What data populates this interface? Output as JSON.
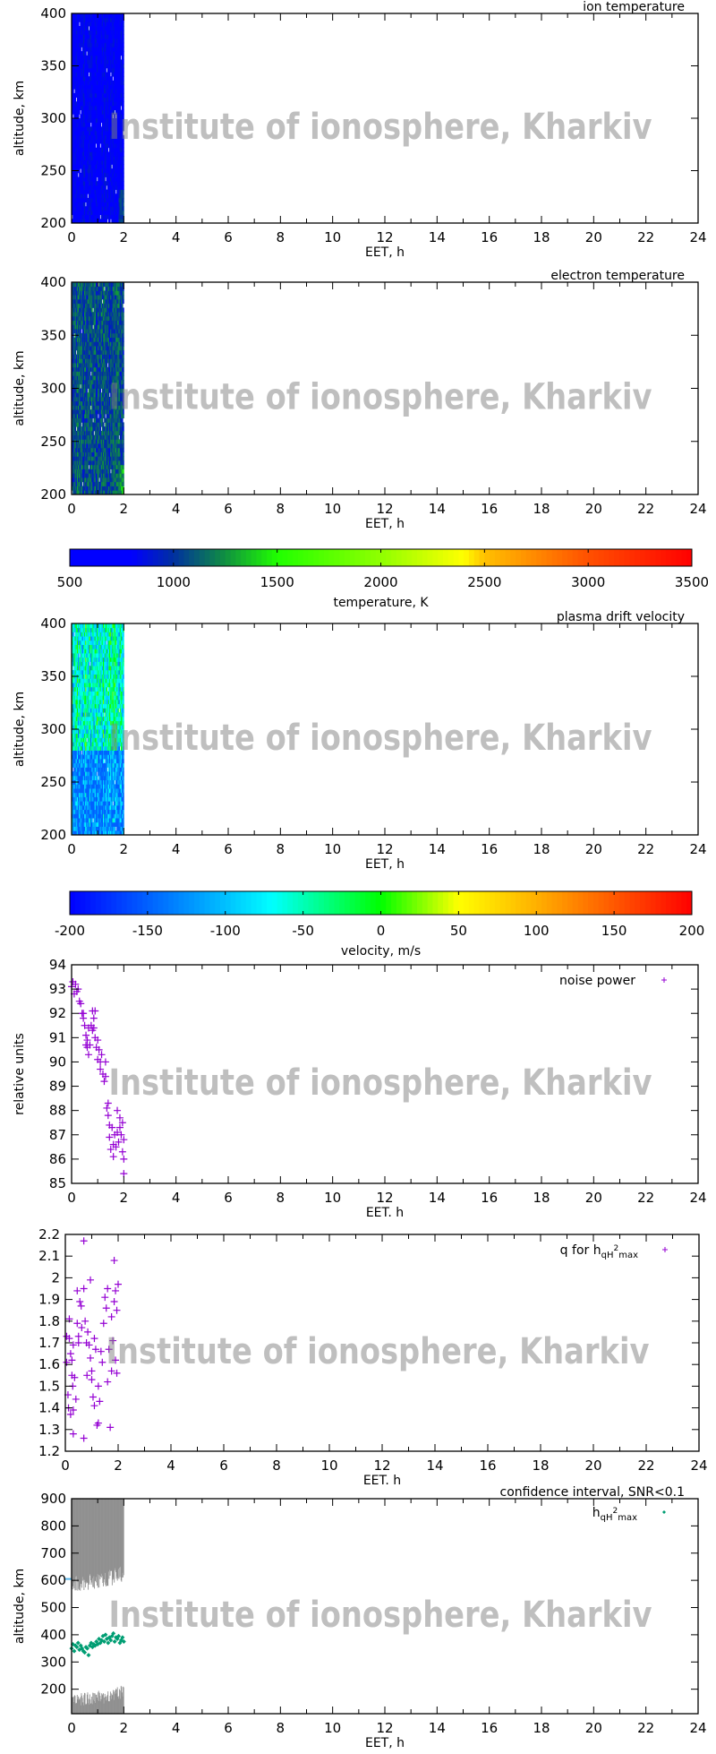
{
  "watermark": "Institute of ionosphere, Kharkiv",
  "colors": {
    "scatter": "#9400d3",
    "h_points": "#009e73",
    "confidence": "#909090",
    "arrow": "#56b4e9",
    "watermark": "#c0c0c0"
  },
  "chart_data": [
    {
      "type": "heatmap",
      "title": "ion temperature",
      "xlabel": "EET, h",
      "ylabel": "altitude, km",
      "xlim": [
        0,
        24
      ],
      "ylim": [
        200,
        400
      ],
      "xticks": [
        "0",
        "2",
        "4",
        "6",
        "8",
        "10",
        "12",
        "14",
        "16",
        "18",
        "20",
        "22",
        "24"
      ],
      "yticks": [
        "200",
        "250",
        "300",
        "350",
        "400"
      ],
      "data_x_range": [
        0,
        2
      ],
      "value_range": [
        600,
        1100
      ],
      "colorbar": "temperature"
    },
    {
      "type": "heatmap",
      "title": "electron temperature",
      "xlabel": "EET, h",
      "ylabel": "altitude, km",
      "xlim": [
        0,
        24
      ],
      "ylim": [
        200,
        400
      ],
      "xticks": [
        "0",
        "2",
        "4",
        "6",
        "8",
        "10",
        "12",
        "14",
        "16",
        "18",
        "20",
        "22",
        "24"
      ],
      "yticks": [
        "200",
        "250",
        "300",
        "350",
        "400"
      ],
      "data_x_range": [
        0,
        2
      ],
      "value_range": [
        800,
        1500
      ],
      "colorbar": {
        "label": "temperature, K",
        "range": [
          500,
          3500
        ],
        "ticks": [
          "500",
          "1000",
          "1500",
          "2000",
          "2500",
          "3000",
          "3500"
        ],
        "stops": [
          [
            500,
            "#0000ff"
          ],
          [
            800,
            "#0000ff"
          ],
          [
            1000,
            "#0030a0"
          ],
          [
            1250,
            "#109040"
          ],
          [
            1500,
            "#20ff00"
          ],
          [
            2000,
            "#90ff00"
          ],
          [
            2400,
            "#ffff00"
          ],
          [
            2500,
            "#ffc000"
          ],
          [
            3000,
            "#ff5000"
          ],
          [
            3500,
            "#ff0000"
          ]
        ]
      }
    },
    {
      "type": "heatmap",
      "title": "plasma drift velocity",
      "xlabel": "EET, h",
      "ylabel": "altitude, km",
      "xlim": [
        0,
        24
      ],
      "ylim": [
        200,
        400
      ],
      "xticks": [
        "0",
        "2",
        "4",
        "6",
        "8",
        "10",
        "12",
        "14",
        "16",
        "18",
        "20",
        "22",
        "24"
      ],
      "yticks": [
        "200",
        "250",
        "300",
        "350",
        "400"
      ],
      "data_x_range": [
        0,
        2
      ],
      "value_range": [
        -150,
        60
      ],
      "colorbar": {
        "label": "velocity, m/s",
        "range": [
          -200,
          200
        ],
        "ticks": [
          "-200",
          "-150",
          "-100",
          "-50",
          "0",
          "50",
          "100",
          "150",
          "200"
        ],
        "stops": [
          [
            -200,
            "#0000ff"
          ],
          [
            -100,
            "#00c0ff"
          ],
          [
            -70,
            "#00ffff"
          ],
          [
            0,
            "#00ff00"
          ],
          [
            50,
            "#ffff00"
          ],
          [
            100,
            "#ffb000"
          ],
          [
            200,
            "#ff0000"
          ]
        ]
      }
    },
    {
      "type": "scatter",
      "legend": {
        "label": "noise power",
        "position": "top-right"
      },
      "xlabel": "EET. h",
      "ylabel": "relative units",
      "xlim": [
        0,
        24
      ],
      "ylim": [
        85,
        94
      ],
      "xticks": [
        "0",
        "2",
        "4",
        "6",
        "8",
        "10",
        "12",
        "14",
        "16",
        "18",
        "20",
        "22",
        "24"
      ],
      "yticks": [
        "85",
        "86",
        "87",
        "88",
        "89",
        "90",
        "91",
        "92",
        "93",
        "94"
      ],
      "points": [
        [
          0,
          93.1
        ],
        [
          0.05,
          93.3
        ],
        [
          0.1,
          92.8
        ],
        [
          0.15,
          93.2
        ],
        [
          0.2,
          92.9
        ],
        [
          0.25,
          93.0
        ],
        [
          0.3,
          92.5
        ],
        [
          0.35,
          92.4
        ],
        [
          0.4,
          92.0
        ],
        [
          0.45,
          91.8
        ],
        [
          0.45,
          92.0
        ],
        [
          0.5,
          91.5
        ],
        [
          0.55,
          91.1
        ],
        [
          0.55,
          90.7
        ],
        [
          0.6,
          90.9
        ],
        [
          0.6,
          90.6
        ],
        [
          0.65,
          90.3
        ],
        [
          0.65,
          91.4
        ],
        [
          0.7,
          90.7
        ],
        [
          0.75,
          91.5
        ],
        [
          0.8,
          91.3
        ],
        [
          0.8,
          92.1
        ],
        [
          0.85,
          91.4
        ],
        [
          0.85,
          91.8
        ],
        [
          0.9,
          92.1
        ],
        [
          0.9,
          91.0
        ],
        [
          0.95,
          90.6
        ],
        [
          1.0,
          90.9
        ],
        [
          1.0,
          90.1
        ],
        [
          1.05,
          90.5
        ],
        [
          1.1,
          90.0
        ],
        [
          1.1,
          89.7
        ],
        [
          1.15,
          90.3
        ],
        [
          1.2,
          89.5
        ],
        [
          1.25,
          89.2
        ],
        [
          1.3,
          89.4
        ],
        [
          1.3,
          90.0
        ],
        [
          1.35,
          88.1
        ],
        [
          1.4,
          88.3
        ],
        [
          1.4,
          87.8
        ],
        [
          1.45,
          87.4
        ],
        [
          1.45,
          86.9
        ],
        [
          1.5,
          86.4
        ],
        [
          1.55,
          87.3
        ],
        [
          1.6,
          86.1
        ],
        [
          1.6,
          86.6
        ],
        [
          1.65,
          87.0
        ],
        [
          1.7,
          86.5
        ],
        [
          1.75,
          88.0
        ],
        [
          1.75,
          87.1
        ],
        [
          1.8,
          86.7
        ],
        [
          1.85,
          87.7
        ],
        [
          1.85,
          87.3
        ],
        [
          1.9,
          87.0
        ],
        [
          1.95,
          86.3
        ],
        [
          1.95,
          87.5
        ],
        [
          2.0,
          86.8
        ],
        [
          2.0,
          86.0
        ],
        [
          2.0,
          85.4
        ]
      ]
    },
    {
      "type": "scatter",
      "legend": {
        "main": "q for h",
        "sub1": "qH",
        "sup": "2",
        "sub2": "max",
        "position": "top-right"
      },
      "xlabel": "EET. h",
      "ylabel": "",
      "xlim": [
        0,
        24
      ],
      "ylim": [
        1.2,
        2.2
      ],
      "xticks": [
        "0",
        "2",
        "4",
        "6",
        "8",
        "10",
        "12",
        "14",
        "16",
        "18",
        "20",
        "22",
        "24"
      ],
      "yticks": [
        "1.2",
        "1.3",
        "1.4",
        "1.5",
        "1.6",
        "1.7",
        "1.8",
        "1.9",
        "2",
        "2.1",
        "2.2"
      ],
      "points": [
        [
          0.05,
          1.61
        ],
        [
          0.05,
          1.73
        ],
        [
          0.1,
          1.46
        ],
        [
          0.12,
          1.4
        ],
        [
          0.15,
          1.81
        ],
        [
          0.15,
          1.72
        ],
        [
          0.2,
          1.65
        ],
        [
          0.2,
          1.37
        ],
        [
          0.25,
          1.55
        ],
        [
          0.25,
          1.62
        ],
        [
          0.28,
          1.5
        ],
        [
          0.3,
          1.39
        ],
        [
          0.3,
          1.28
        ],
        [
          0.3,
          1.69
        ],
        [
          0.35,
          1.54
        ],
        [
          0.4,
          1.44
        ],
        [
          0.45,
          1.94
        ],
        [
          0.45,
          1.79
        ],
        [
          0.5,
          1.73
        ],
        [
          0.5,
          1.7
        ],
        [
          0.55,
          1.89
        ],
        [
          0.6,
          1.87
        ],
        [
          0.62,
          1.77
        ],
        [
          0.7,
          1.95
        ],
        [
          0.7,
          1.26
        ],
        [
          0.7,
          2.17
        ],
        [
          0.75,
          1.8
        ],
        [
          0.8,
          1.7
        ],
        [
          0.82,
          1.55
        ],
        [
          0.85,
          1.75
        ],
        [
          0.9,
          1.69
        ],
        [
          0.95,
          1.63
        ],
        [
          0.95,
          1.99
        ],
        [
          1.0,
          1.57
        ],
        [
          1.0,
          1.53
        ],
        [
          1.05,
          1.45
        ],
        [
          1.1,
          1.41
        ],
        [
          1.1,
          1.72
        ],
        [
          1.15,
          1.67
        ],
        [
          1.2,
          1.32
        ],
        [
          1.25,
          1.33
        ],
        [
          1.25,
          1.5
        ],
        [
          1.3,
          1.43
        ],
        [
          1.35,
          1.66
        ],
        [
          1.4,
          1.61
        ],
        [
          1.45,
          1.79
        ],
        [
          1.5,
          1.91
        ],
        [
          1.55,
          1.86
        ],
        [
          1.6,
          1.95
        ],
        [
          1.6,
          1.52
        ],
        [
          1.65,
          1.67
        ],
        [
          1.7,
          1.31
        ],
        [
          1.75,
          1.82
        ],
        [
          1.75,
          1.57
        ],
        [
          1.8,
          1.71
        ],
        [
          1.85,
          1.89
        ],
        [
          1.85,
          2.08
        ],
        [
          1.9,
          1.62
        ],
        [
          1.9,
          1.94
        ],
        [
          1.95,
          1.85
        ],
        [
          1.95,
          1.56
        ],
        [
          2.0,
          1.97
        ]
      ]
    },
    {
      "type": "scatter",
      "title": "confidence interval, SNR<0.1",
      "legend": {
        "main": "h",
        "sub1": "qH",
        "sup": "2",
        "sub2": "max",
        "position": "top-right"
      },
      "xlabel": "EET, h",
      "ylabel": "altitude, km",
      "xlim": [
        0,
        24
      ],
      "ylim": [
        110,
        900
      ],
      "xticks": [
        "0",
        "2",
        "4",
        "6",
        "8",
        "10",
        "12",
        "14",
        "16",
        "18",
        "20",
        "22",
        "24"
      ],
      "yticks": [
        "200",
        "300",
        "400",
        "500",
        "600",
        "700",
        "800",
        "900"
      ],
      "marker_at_axis": 605,
      "confidence_upper_lower_edge": [
        [
          0,
          585
        ],
        [
          0.5,
          590
        ],
        [
          1.0,
          600
        ],
        [
          1.5,
          610
        ],
        [
          2.0,
          625
        ]
      ],
      "confidence_lower_upper_edge": [
        [
          0,
          160
        ],
        [
          0.5,
          165
        ],
        [
          1.0,
          170
        ],
        [
          1.5,
          175
        ],
        [
          2.0,
          195
        ]
      ],
      "points": [
        [
          0,
          350
        ],
        [
          0.05,
          365
        ],
        [
          0.1,
          340
        ],
        [
          0.15,
          360
        ],
        [
          0.2,
          355
        ],
        [
          0.25,
          370
        ],
        [
          0.3,
          345
        ],
        [
          0.35,
          360
        ],
        [
          0.4,
          350
        ],
        [
          0.45,
          340
        ],
        [
          0.5,
          335
        ],
        [
          0.55,
          355
        ],
        [
          0.6,
          350
        ],
        [
          0.65,
          325
        ],
        [
          0.7,
          360
        ],
        [
          0.75,
          370
        ],
        [
          0.8,
          355
        ],
        [
          0.85,
          365
        ],
        [
          0.9,
          360
        ],
        [
          0.95,
          375
        ],
        [
          1.0,
          365
        ],
        [
          1.05,
          385
        ],
        [
          1.1,
          370
        ],
        [
          1.15,
          380
        ],
        [
          1.2,
          395
        ],
        [
          1.25,
          375
        ],
        [
          1.3,
          400
        ],
        [
          1.35,
          385
        ],
        [
          1.4,
          370
        ],
        [
          1.45,
          390
        ],
        [
          1.5,
          380
        ],
        [
          1.55,
          395
        ],
        [
          1.6,
          405
        ],
        [
          1.65,
          375
        ],
        [
          1.7,
          390
        ],
        [
          1.75,
          385
        ],
        [
          1.8,
          395
        ],
        [
          1.85,
          370
        ],
        [
          1.9,
          380
        ],
        [
          1.95,
          390
        ],
        [
          2.0,
          375
        ]
      ]
    }
  ]
}
